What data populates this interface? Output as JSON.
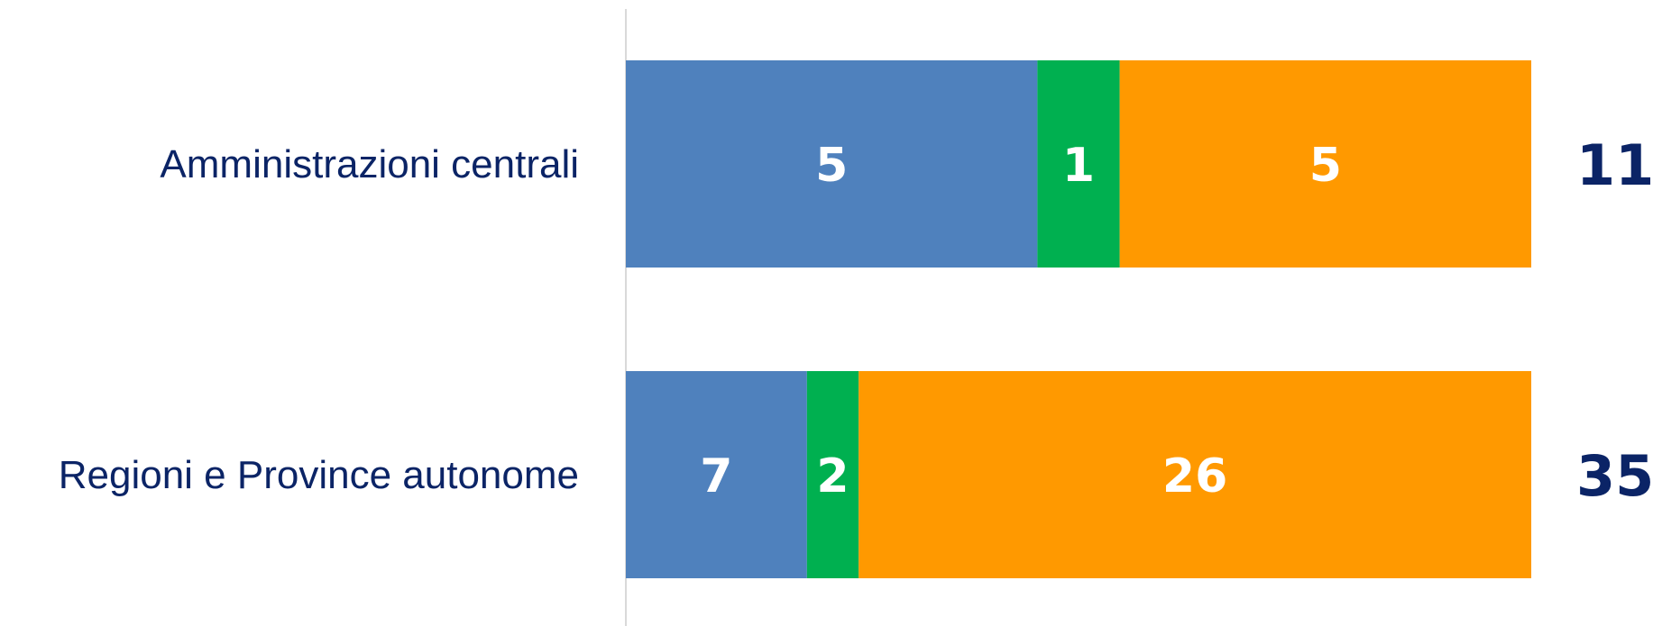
{
  "chart_data": {
    "type": "bar",
    "orientation": "horizontal",
    "stacked": true,
    "categories": [
      "Amministrazioni centrali",
      "Regioni e Province autonome"
    ],
    "series": [
      {
        "values": [
          5,
          7
        ],
        "color": "#4f81bd"
      },
      {
        "values": [
          1,
          2
        ],
        "color": "#00b050"
      },
      {
        "values": [
          5,
          26
        ],
        "color": "#ff9900"
      }
    ],
    "totals": [
      "11",
      "35"
    ],
    "title": "",
    "xlabel": "",
    "ylabel": "",
    "grid": false,
    "legend": "none"
  },
  "colors": {
    "category_text": "#0b2466",
    "total_text": "#0b2466",
    "segment_text": "#ffffff",
    "axis_line": "#d9d9d9"
  }
}
